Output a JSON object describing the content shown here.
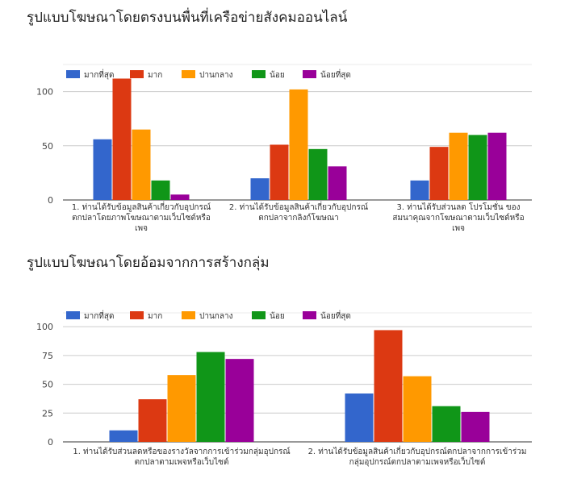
{
  "chart_data": [
    {
      "type": "bar",
      "title": "รูปแบบโฆษณาโดยตรงบนพื่นที่เครือข่ายสังคมออนไลน์",
      "categories": [
        [
          "1. ท่านได้รับข้อมูลสินค้าเกี่ยวกับอุปกรณ์",
          "ตกปลาโดยภาพโฆษณาตามเว็บไซต์หรือ",
          "เพจ"
        ],
        [
          "2. ท่านได้รับข้อมูลสินค้าเกี่ยวกับอุปกรณ์",
          "ตกปลาจากลิงก์โฆษณา"
        ],
        [
          "3. ท่านได้รับส่วนลด โปรโมชั่น ของ",
          "สมนาคุณจากโฆษณาตามเว็บไซต์หรือ",
          "เพจ"
        ]
      ],
      "series": [
        {
          "name": "มากที่สุด",
          "color": "#3366cc",
          "values": [
            56,
            20,
            18
          ]
        },
        {
          "name": "มาก",
          "color": "#dc3912",
          "values": [
            112,
            51,
            49
          ]
        },
        {
          "name": "ปานกลาง",
          "color": "#ff9900",
          "values": [
            65,
            102,
            62
          ]
        },
        {
          "name": "น้อย",
          "color": "#109618",
          "values": [
            18,
            47,
            60
          ]
        },
        {
          "name": "น้อยที่สุด",
          "color": "#990099",
          "values": [
            5,
            31,
            62
          ]
        }
      ],
      "yticks": [
        0,
        50,
        100
      ],
      "ylim": [
        0,
        125
      ],
      "legend": "top",
      "grid": true
    },
    {
      "type": "bar",
      "title": "รูปแบบโฆษณาโดยอ้อมจากการสร้างกลุ่ม",
      "categories": [
        [
          "1. ท่านได้รับส่วนลดหรือของรางวัลจากการเข้าร่วมกลุ่มอุปกรณ์",
          "ตกปลาตามเพจหรือเว็บไซต์"
        ],
        [
          "2. ท่านได้รับข้อมูลสินค้าเกี่ยวกับอุปกรณ์ตกปลาจากการเข้าร่วม",
          "กลุ่มอุปกรณ์ตกปลาตามเพจหรือเว็บไซต์"
        ]
      ],
      "series": [
        {
          "name": "มากที่สุด",
          "color": "#3366cc",
          "values": [
            10,
            42
          ]
        },
        {
          "name": "มาก",
          "color": "#dc3912",
          "values": [
            37,
            97
          ]
        },
        {
          "name": "ปานกลาง",
          "color": "#ff9900",
          "values": [
            58,
            57
          ]
        },
        {
          "name": "น้อย",
          "color": "#109618",
          "values": [
            78,
            31
          ]
        },
        {
          "name": "น้อยที่สุด",
          "color": "#990099",
          "values": [
            72,
            26
          ]
        }
      ],
      "yticks": [
        0,
        25,
        50,
        75,
        100
      ],
      "ylim": [
        0,
        112
      ],
      "legend": "top",
      "grid": true
    }
  ]
}
